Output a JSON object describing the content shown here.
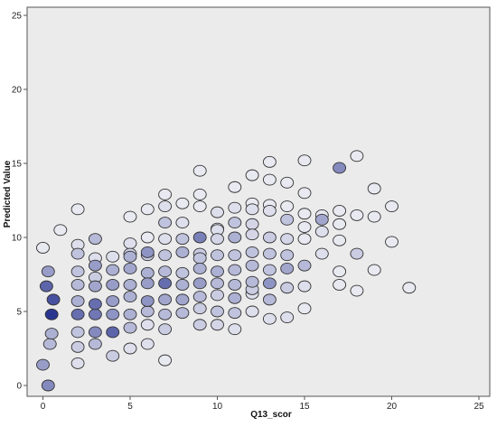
{
  "chart_data": {
    "type": "scatter",
    "title": "",
    "xlabel": "Q13_scor",
    "ylabel": "Predicted Value",
    "xlim": [
      0,
      25
    ],
    "ylim": [
      0,
      25
    ],
    "x_ticks": [
      "0",
      "5",
      "10",
      "15",
      "20",
      "25"
    ],
    "y_ticks": [
      "0",
      "5",
      "10",
      "15",
      "20",
      "25"
    ],
    "grid": false,
    "legend": "none",
    "colors": {
      "plot_bg": "#ebebeb",
      "frame": "#555555",
      "marker_edge": "#333333",
      "marker_light": "#f2f2f6",
      "marker_dark": "#2a3590"
    },
    "marker_shading": "darker marker = more overlapping cases (weight 0-1)",
    "points": [
      {
        "x": 0,
        "y": 9.3,
        "w": 0.05
      },
      {
        "x": 0.3,
        "y": 7.7,
        "w": 0.45
      },
      {
        "x": 0.2,
        "y": 6.7,
        "w": 0.75
      },
      {
        "x": 0.6,
        "y": 5.8,
        "w": 0.85
      },
      {
        "x": 0.5,
        "y": 4.8,
        "w": 1.0
      },
      {
        "x": 0.5,
        "y": 3.5,
        "w": 0.35
      },
      {
        "x": 0.4,
        "y": 2.8,
        "w": 0.3
      },
      {
        "x": 0,
        "y": 1.4,
        "w": 0.45
      },
      {
        "x": 0.3,
        "y": 0,
        "w": 0.55
      },
      {
        "x": 1,
        "y": 10.5,
        "w": 0.05
      },
      {
        "x": 2,
        "y": 11.9,
        "w": 0.05
      },
      {
        "x": 2,
        "y": 9.5,
        "w": 0.1
      },
      {
        "x": 2,
        "y": 8.9,
        "w": 0.25
      },
      {
        "x": 2,
        "y": 7.7,
        "w": 0.25
      },
      {
        "x": 2,
        "y": 6.8,
        "w": 0.3
      },
      {
        "x": 2,
        "y": 5.7,
        "w": 0.35
      },
      {
        "x": 2,
        "y": 4.8,
        "w": 0.7
      },
      {
        "x": 2,
        "y": 3.6,
        "w": 0.25
      },
      {
        "x": 2,
        "y": 2.6,
        "w": 0.2
      },
      {
        "x": 2,
        "y": 1.5,
        "w": 0.1
      },
      {
        "x": 3,
        "y": 9.9,
        "w": 0.3
      },
      {
        "x": 3,
        "y": 8.6,
        "w": 0.1
      },
      {
        "x": 3,
        "y": 8.1,
        "w": 0.45
      },
      {
        "x": 3,
        "y": 7.3,
        "w": 0.2
      },
      {
        "x": 3,
        "y": 6.7,
        "w": 0.4
      },
      {
        "x": 3,
        "y": 5.5,
        "w": 0.7
      },
      {
        "x": 3,
        "y": 4.8,
        "w": 0.65
      },
      {
        "x": 3,
        "y": 3.6,
        "w": 0.55
      },
      {
        "x": 3,
        "y": 2.8,
        "w": 0.3
      },
      {
        "x": 4,
        "y": 8.7,
        "w": 0.1
      },
      {
        "x": 4,
        "y": 7.8,
        "w": 0.35
      },
      {
        "x": 4,
        "y": 6.8,
        "w": 0.45
      },
      {
        "x": 4,
        "y": 5.7,
        "w": 0.45
      },
      {
        "x": 4,
        "y": 4.8,
        "w": 0.5
      },
      {
        "x": 4,
        "y": 3.6,
        "w": 0.75
      },
      {
        "x": 4,
        "y": 2.0,
        "w": 0.2
      },
      {
        "x": 5,
        "y": 11.4,
        "w": 0.05
      },
      {
        "x": 5,
        "y": 9.6,
        "w": 0.1
      },
      {
        "x": 5,
        "y": 8.9,
        "w": 0.2
      },
      {
        "x": 5,
        "y": 8.7,
        "w": 0.35
      },
      {
        "x": 5,
        "y": 7.9,
        "w": 0.4
      },
      {
        "x": 5,
        "y": 6.8,
        "w": 0.35
      },
      {
        "x": 5,
        "y": 6.0,
        "w": 0.35
      },
      {
        "x": 5,
        "y": 4.8,
        "w": 0.35
      },
      {
        "x": 5,
        "y": 3.9,
        "w": 0.3
      },
      {
        "x": 5,
        "y": 2.5,
        "w": 0.1
      },
      {
        "x": 6,
        "y": 11.9,
        "w": 0.05
      },
      {
        "x": 6,
        "y": 10.0,
        "w": 0.05
      },
      {
        "x": 6,
        "y": 9.0,
        "w": 0.5
      },
      {
        "x": 6,
        "y": 8.8,
        "w": 0.2
      },
      {
        "x": 6,
        "y": 7.6,
        "w": 0.35
      },
      {
        "x": 6,
        "y": 6.9,
        "w": 0.45
      },
      {
        "x": 6,
        "y": 5.7,
        "w": 0.5
      },
      {
        "x": 6,
        "y": 5.0,
        "w": 0.3
      },
      {
        "x": 6,
        "y": 4.1,
        "w": 0.1
      },
      {
        "x": 6,
        "y": 2.8,
        "w": 0.1
      },
      {
        "x": 7,
        "y": 12.9,
        "w": 0.05
      },
      {
        "x": 7,
        "y": 12.1,
        "w": 0.1
      },
      {
        "x": 7,
        "y": 11.0,
        "w": 0.25
      },
      {
        "x": 7,
        "y": 9.9,
        "w": 0.1
      },
      {
        "x": 7,
        "y": 8.8,
        "w": 0.25
      },
      {
        "x": 7,
        "y": 7.7,
        "w": 0.3
      },
      {
        "x": 7,
        "y": 6.9,
        "w": 0.7
      },
      {
        "x": 7,
        "y": 5.8,
        "w": 0.4
      },
      {
        "x": 7,
        "y": 4.8,
        "w": 0.3
      },
      {
        "x": 7,
        "y": 3.8,
        "w": 0.2
      },
      {
        "x": 7,
        "y": 1.7,
        "w": 0.05
      },
      {
        "x": 8,
        "y": 12.3,
        "w": 0.05
      },
      {
        "x": 8,
        "y": 11.0,
        "w": 0.1
      },
      {
        "x": 8,
        "y": 9.9,
        "w": 0.25
      },
      {
        "x": 8,
        "y": 9.0,
        "w": 0.35
      },
      {
        "x": 8,
        "y": 7.6,
        "w": 0.25
      },
      {
        "x": 8,
        "y": 6.8,
        "w": 0.35
      },
      {
        "x": 8,
        "y": 5.8,
        "w": 0.4
      },
      {
        "x": 8,
        "y": 4.9,
        "w": 0.3
      },
      {
        "x": 9,
        "y": 14.5,
        "w": 0.05
      },
      {
        "x": 9,
        "y": 12.9,
        "w": 0.05
      },
      {
        "x": 9,
        "y": 12.1,
        "w": 0.05
      },
      {
        "x": 9,
        "y": 10.0,
        "w": 0.6
      },
      {
        "x": 9,
        "y": 8.9,
        "w": 0.2
      },
      {
        "x": 9,
        "y": 8.6,
        "w": 0.25
      },
      {
        "x": 9,
        "y": 7.9,
        "w": 0.35
      },
      {
        "x": 9,
        "y": 6.9,
        "w": 0.45
      },
      {
        "x": 9,
        "y": 6.0,
        "w": 0.3
      },
      {
        "x": 9,
        "y": 5.2,
        "w": 0.2
      },
      {
        "x": 9,
        "y": 4.1,
        "w": 0.2
      },
      {
        "x": 10,
        "y": 11.7,
        "w": 0.1
      },
      {
        "x": 10,
        "y": 10.6,
        "w": 0.05
      },
      {
        "x": 10,
        "y": 10.5,
        "w": 0.1
      },
      {
        "x": 10,
        "y": 9.9,
        "w": 0.15
      },
      {
        "x": 10,
        "y": 8.8,
        "w": 0.25
      },
      {
        "x": 10,
        "y": 7.7,
        "w": 0.35
      },
      {
        "x": 10,
        "y": 6.9,
        "w": 0.3
      },
      {
        "x": 10,
        "y": 6.1,
        "w": 0.2
      },
      {
        "x": 10,
        "y": 5.0,
        "w": 0.25
      },
      {
        "x": 10,
        "y": 4.1,
        "w": 0.15
      },
      {
        "x": 11,
        "y": 13.4,
        "w": 0.05
      },
      {
        "x": 11,
        "y": 12.0,
        "w": 0.1
      },
      {
        "x": 11,
        "y": 11.0,
        "w": 0.25
      },
      {
        "x": 11,
        "y": 10.0,
        "w": 0.35
      },
      {
        "x": 11,
        "y": 8.8,
        "w": 0.25
      },
      {
        "x": 11,
        "y": 7.8,
        "w": 0.3
      },
      {
        "x": 11,
        "y": 6.8,
        "w": 0.3
      },
      {
        "x": 11,
        "y": 5.9,
        "w": 0.35
      },
      {
        "x": 11,
        "y": 4.9,
        "w": 0.25
      },
      {
        "x": 11,
        "y": 3.8,
        "w": 0.1
      },
      {
        "x": 12,
        "y": 14.2,
        "w": 0.05
      },
      {
        "x": 12,
        "y": 12.3,
        "w": 0.05
      },
      {
        "x": 12,
        "y": 11.9,
        "w": 0.1
      },
      {
        "x": 12,
        "y": 10.9,
        "w": 0.15
      },
      {
        "x": 12,
        "y": 10.2,
        "w": 0.15
      },
      {
        "x": 12,
        "y": 9.0,
        "w": 0.25
      },
      {
        "x": 12,
        "y": 8.1,
        "w": 0.3
      },
      {
        "x": 12,
        "y": 7.0,
        "w": 0.3
      },
      {
        "x": 12,
        "y": 6.5,
        "w": 0.2
      },
      {
        "x": 12,
        "y": 6.2,
        "w": 0.1
      },
      {
        "x": 12,
        "y": 5.0,
        "w": 0.1
      },
      {
        "x": 13,
        "y": 15.1,
        "w": 0.05
      },
      {
        "x": 13,
        "y": 13.9,
        "w": 0.05
      },
      {
        "x": 13,
        "y": 12.2,
        "w": 0.05
      },
      {
        "x": 13,
        "y": 11.8,
        "w": 0.1
      },
      {
        "x": 13,
        "y": 10.0,
        "w": 0.2
      },
      {
        "x": 13,
        "y": 8.9,
        "w": 0.25
      },
      {
        "x": 13,
        "y": 7.8,
        "w": 0.25
      },
      {
        "x": 13,
        "y": 6.9,
        "w": 0.5
      },
      {
        "x": 13,
        "y": 5.8,
        "w": 0.3
      },
      {
        "x": 13,
        "y": 4.5,
        "w": 0.1
      },
      {
        "x": 14,
        "y": 13.7,
        "w": 0.05
      },
      {
        "x": 14,
        "y": 12.1,
        "w": 0.05
      },
      {
        "x": 14,
        "y": 11.2,
        "w": 0.25
      },
      {
        "x": 14,
        "y": 9.9,
        "w": 0.15
      },
      {
        "x": 14,
        "y": 8.8,
        "w": 0.25
      },
      {
        "x": 14,
        "y": 7.9,
        "w": 0.4
      },
      {
        "x": 14,
        "y": 6.6,
        "w": 0.2
      },
      {
        "x": 14,
        "y": 4.6,
        "w": 0.1
      },
      {
        "x": 15,
        "y": 15.2,
        "w": 0.05
      },
      {
        "x": 15,
        "y": 13.0,
        "w": 0.05
      },
      {
        "x": 15,
        "y": 11.6,
        "w": 0.05
      },
      {
        "x": 15,
        "y": 10.7,
        "w": 0.05
      },
      {
        "x": 15,
        "y": 9.9,
        "w": 0.05
      },
      {
        "x": 15,
        "y": 8.1,
        "w": 0.3
      },
      {
        "x": 15,
        "y": 6.7,
        "w": 0.1
      },
      {
        "x": 15,
        "y": 5.2,
        "w": 0.05
      },
      {
        "x": 16,
        "y": 11.5,
        "w": 0.05
      },
      {
        "x": 16,
        "y": 11.2,
        "w": 0.4
      },
      {
        "x": 16,
        "y": 10.4,
        "w": 0.1
      },
      {
        "x": 16,
        "y": 8.9,
        "w": 0.1
      },
      {
        "x": 17,
        "y": 14.7,
        "w": 0.55
      },
      {
        "x": 17,
        "y": 11.8,
        "w": 0.05
      },
      {
        "x": 17,
        "y": 10.9,
        "w": 0.05
      },
      {
        "x": 17,
        "y": 9.8,
        "w": 0.05
      },
      {
        "x": 17,
        "y": 7.7,
        "w": 0.05
      },
      {
        "x": 17,
        "y": 6.8,
        "w": 0.05
      },
      {
        "x": 18,
        "y": 15.5,
        "w": 0.05
      },
      {
        "x": 18,
        "y": 11.5,
        "w": 0.05
      },
      {
        "x": 18,
        "y": 8.9,
        "w": 0.2
      },
      {
        "x": 18,
        "y": 6.4,
        "w": 0.05
      },
      {
        "x": 19,
        "y": 13.3,
        "w": 0.05
      },
      {
        "x": 19,
        "y": 11.4,
        "w": 0.05
      },
      {
        "x": 19,
        "y": 7.8,
        "w": 0.05
      },
      {
        "x": 20,
        "y": 12.1,
        "w": 0.05
      },
      {
        "x": 20,
        "y": 9.7,
        "w": 0.05
      },
      {
        "x": 21,
        "y": 6.6,
        "w": 0.05
      }
    ]
  }
}
